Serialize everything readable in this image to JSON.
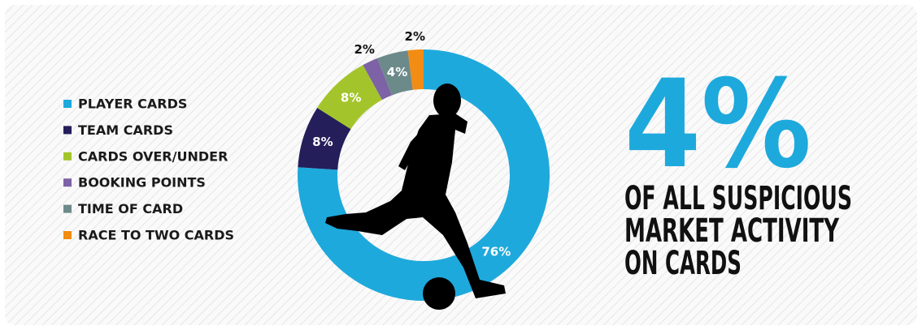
{
  "chart_data": {
    "type": "donut",
    "categories": [
      "PLAYER CARDS",
      "TEAM CARDS",
      "CARDS OVER/UNDER",
      "BOOKING POINTS",
      "TIME OF CARD",
      "RACE TO TWO CARDS"
    ],
    "values": [
      76,
      8,
      8,
      2,
      4,
      2
    ],
    "value_labels": [
      "76%",
      "8%",
      "8%",
      "2%",
      "4%",
      "2%"
    ],
    "colors": [
      "#1ea9dc",
      "#241e5a",
      "#a3c52b",
      "#7d62a6",
      "#6d8a8b",
      "#f28c13"
    ],
    "legend": "left"
  },
  "callout": {
    "stat": "4%",
    "lines": [
      "OF ALL SUSPICIOUS",
      "MARKET ACTIVITY",
      "ON CARDS"
    ]
  }
}
